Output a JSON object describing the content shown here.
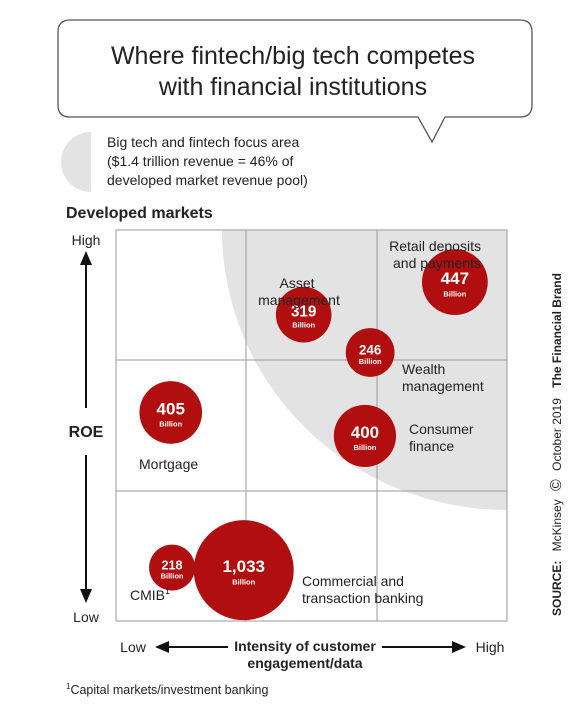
{
  "title": [
    "Where fintech/big tech competes",
    "with financial institutions"
  ],
  "legend": {
    "lines": [
      "Big tech and fintech focus area",
      "($1.4 trillion revenue = 46% of",
      "developed market revenue pool)"
    ],
    "color": "#e3e3e3"
  },
  "subtitle": "Developed markets",
  "source": {
    "prefix": "SOURCE:",
    "credit": "McKinsey",
    "copyright": "©",
    "date": "October 2019",
    "brand": "The Financial Brand"
  },
  "footnote": {
    "mark": "1",
    "text": "Capital markets/investment banking"
  },
  "colors": {
    "bubble": "#b10f0f",
    "grid": "#9a9a9a",
    "shade": "#e3e3e3"
  },
  "chart_data": {
    "type": "bubble",
    "x_axis": {
      "label": [
        "Intensity of customer",
        "engagement/data"
      ],
      "low": "Low",
      "high": "High",
      "levels": [
        "Low",
        "Medium",
        "High"
      ]
    },
    "y_axis": {
      "label": "ROE",
      "low": "Low",
      "high": "High",
      "levels": [
        "Low",
        "Medium",
        "High"
      ]
    },
    "unit": "Billion",
    "bubbles": [
      {
        "name": "Retail deposits and payments",
        "label_lines": [
          "Retail deposits",
          "and payments"
        ],
        "value": 447,
        "x": 2.6,
        "y": 2.6
      },
      {
        "name": "Asset management",
        "label_lines": [
          "Asset",
          "management"
        ],
        "value": 319,
        "x": 1.44,
        "y": 2.35
      },
      {
        "name": "Wealth management",
        "label_lines": [
          "Wealth",
          "management"
        ],
        "value": 246,
        "x": 1.95,
        "y": 2.06
      },
      {
        "name": "Consumer finance",
        "label_lines": [
          "Consumer",
          "finance"
        ],
        "value": 400,
        "x": 1.91,
        "y": 1.42
      },
      {
        "name": "Mortgage",
        "label_lines": [
          "Mortgage"
        ],
        "value": 405,
        "x": 0.42,
        "y": 1.6
      },
      {
        "name": "CMIB",
        "label_lines": [
          "CMIB"
        ],
        "footnote_mark": "1",
        "value": 218,
        "x": 0.43,
        "y": 0.41
      },
      {
        "name": "Commercial and transaction banking",
        "label_lines": [
          "Commercial and",
          "transaction banking"
        ],
        "value": 1033,
        "x": 0.98,
        "y": 0.39
      }
    ],
    "focus_area": {
      "revenue": "$1.4 trillion",
      "share": "46%"
    }
  }
}
